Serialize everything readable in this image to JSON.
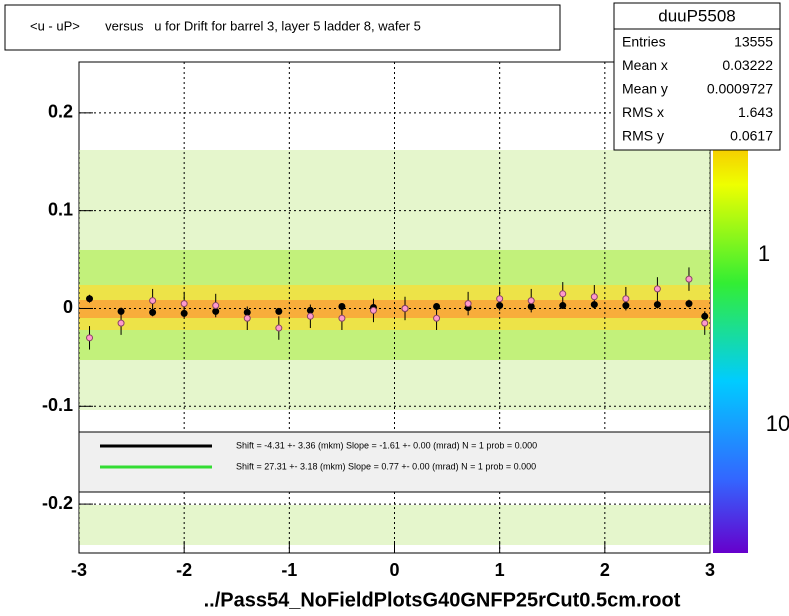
{
  "chart_data": {
    "type": "scatter",
    "title": "<u - uP>       versus   u for Drift for barrel 3, layer 5 ladder 8, wafer 5",
    "footer": "../Pass54_NoFieldPlotsG40GNFP25rCut0.5cm.root",
    "xlim": [
      -3,
      3
    ],
    "ylim": [
      -0.25,
      0.252
    ],
    "xticks": [
      -3,
      -2,
      -1,
      0,
      1,
      2,
      3
    ],
    "yticks": [
      -0.2,
      -0.1,
      0,
      0.1,
      0.2
    ],
    "grid": true,
    "x": [
      -2.9,
      -2.6,
      -2.3,
      -2.0,
      -1.7,
      -1.4,
      -1.1,
      -0.8,
      -0.5,
      -0.2,
      0.1,
      0.4,
      0.7,
      1.0,
      1.3,
      1.6,
      1.9,
      2.2,
      2.5,
      2.8,
      2.95
    ],
    "series": [
      {
        "name": "black",
        "color": "#000000",
        "values": [
          0.01,
          -0.003,
          -0.004,
          -0.005,
          -0.003,
          -0.004,
          -0.003,
          -0.002,
          0.002,
          0.001,
          0.0,
          0.002,
          0.001,
          0.003,
          0.002,
          0.003,
          0.004,
          0.003,
          0.004,
          0.005,
          -0.008
        ],
        "errors": [
          0.004,
          0.004,
          0.004,
          0.004,
          0.003,
          0.003,
          0.003,
          0.003,
          0.003,
          0.003,
          0.003,
          0.003,
          0.003,
          0.003,
          0.003,
          0.003,
          0.003,
          0.004,
          0.004,
          0.004,
          0.005
        ]
      },
      {
        "name": "pink",
        "color": "#ff99cc",
        "values": [
          -0.03,
          -0.015,
          0.008,
          0.005,
          0.003,
          -0.01,
          -0.02,
          -0.008,
          -0.01,
          -0.002,
          0.0,
          -0.01,
          0.005,
          0.01,
          0.008,
          0.015,
          0.012,
          0.01,
          0.02,
          0.03,
          -0.015
        ],
        "errors": [
          0.012,
          0.012,
          0.012,
          0.012,
          0.012,
          0.012,
          0.012,
          0.012,
          0.012,
          0.012,
          0.012,
          0.012,
          0.012,
          0.012,
          0.012,
          0.012,
          0.012,
          0.012,
          0.012,
          0.012,
          0.012
        ]
      }
    ],
    "legend": [
      {
        "text": "Shift =    -4.31 +- 3.36 (mkm) Slope =    -1.61 +- 0.00 (mrad)  N = 1 prob = 0.000",
        "color": "#000000"
      },
      {
        "text": "Shift =    27.31 +- 3.18 (mkm) Slope =     0.77 +- 0.00 (mrad)  N = 1 prob = 0.000",
        "color": "#33dd33"
      }
    ],
    "colorbar_labels": [
      "1",
      "10"
    ],
    "stats": {
      "name": "duuP5508",
      "rows": [
        [
          "Entries",
          "13555"
        ],
        [
          "Mean x",
          "0.03222"
        ],
        [
          "Mean y",
          "0.0009727"
        ],
        [
          "RMS x",
          "1.643"
        ],
        [
          "RMS y",
          "0.0617"
        ]
      ]
    }
  }
}
